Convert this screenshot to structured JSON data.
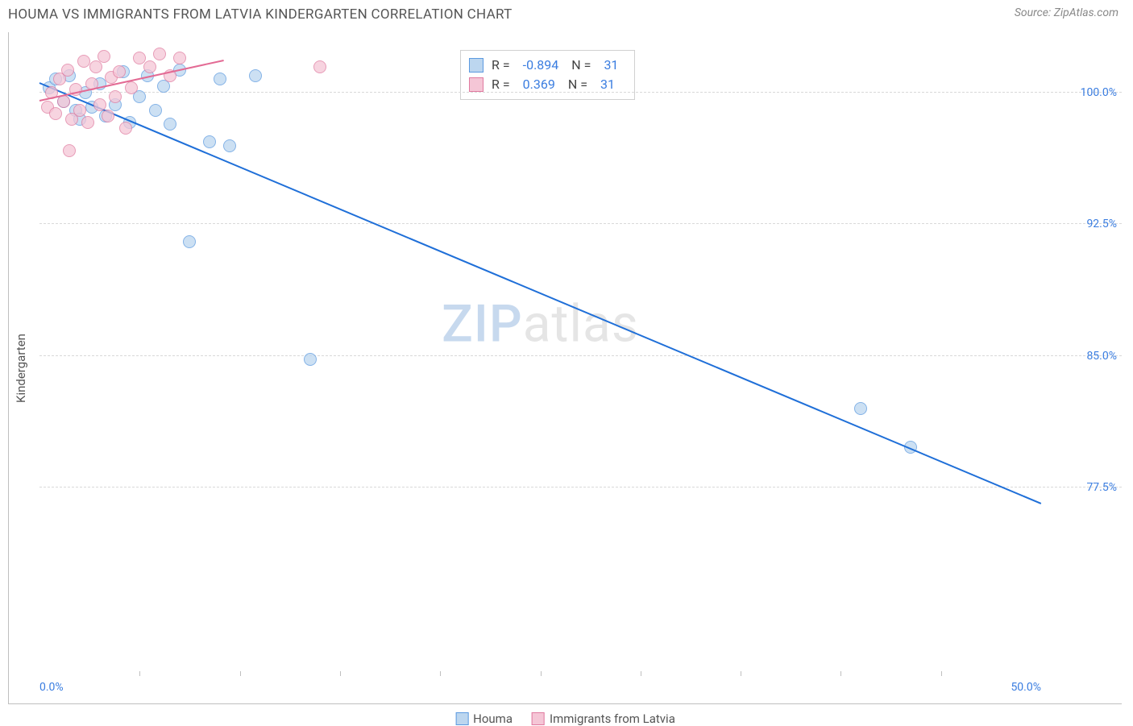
{
  "title": "HOUMA VS IMMIGRANTS FROM LATVIA KINDERGARTEN CORRELATION CHART",
  "source_label": "Source: ZipAtlas.com",
  "ylabel": "Kindergarten",
  "watermark": {
    "zip": "ZIP",
    "atlas": "atlas"
  },
  "chart": {
    "type": "scatter",
    "xlim": [
      0,
      50
    ],
    "ylim": [
      67,
      103
    ],
    "background_color": "#ffffff",
    "grid_color": "#d9d9d9",
    "border_color": "#bfbfbf",
    "xticks_minor": [
      5,
      10,
      15,
      20,
      25,
      30,
      35,
      40,
      45
    ],
    "xticks_labeled": [
      {
        "x": 0,
        "label": "0.0%"
      },
      {
        "x": 50,
        "label": "50.0%"
      }
    ],
    "yticks": [
      {
        "y": 77.5,
        "label": "77.5%"
      },
      {
        "y": 85.0,
        "label": "85.0%"
      },
      {
        "y": 92.5,
        "label": "92.5%"
      },
      {
        "y": 100.0,
        "label": "100.0%"
      }
    ],
    "series": [
      {
        "name": "Houma",
        "fill": "#bcd6ef",
        "stroke": "#5c9ae0",
        "line_color": "#1f6fd8",
        "marker_radius": 8,
        "R": "-0.894",
        "N": "31",
        "trend": {
          "x1": 0,
          "y1": 100.5,
          "x2": 50,
          "y2": 76.5
        },
        "points": [
          {
            "x": 0.5,
            "y": 100.3
          },
          {
            "x": 0.8,
            "y": 100.8
          },
          {
            "x": 1.2,
            "y": 99.5
          },
          {
            "x": 1.5,
            "y": 101.0
          },
          {
            "x": 1.8,
            "y": 99.0
          },
          {
            "x": 2.0,
            "y": 98.5
          },
          {
            "x": 2.3,
            "y": 100.0
          },
          {
            "x": 2.6,
            "y": 99.2
          },
          {
            "x": 3.0,
            "y": 100.5
          },
          {
            "x": 3.3,
            "y": 98.7
          },
          {
            "x": 3.8,
            "y": 99.3
          },
          {
            "x": 4.2,
            "y": 101.2
          },
          {
            "x": 4.5,
            "y": 98.3
          },
          {
            "x": 5.0,
            "y": 99.8
          },
          {
            "x": 5.4,
            "y": 101.0
          },
          {
            "x": 5.8,
            "y": 99.0
          },
          {
            "x": 6.2,
            "y": 100.4
          },
          {
            "x": 6.5,
            "y": 98.2
          },
          {
            "x": 7.0,
            "y": 101.3
          },
          {
            "x": 8.5,
            "y": 97.2
          },
          {
            "x": 9.0,
            "y": 100.8
          },
          {
            "x": 9.5,
            "y": 97.0
          },
          {
            "x": 10.8,
            "y": 101.0
          },
          {
            "x": 7.5,
            "y": 91.5
          },
          {
            "x": 13.5,
            "y": 84.8
          },
          {
            "x": 41.0,
            "y": 82.0
          },
          {
            "x": 43.5,
            "y": 79.8
          }
        ]
      },
      {
        "name": "Immigrants from Latvia",
        "fill": "#f5c6d6",
        "stroke": "#e07ba0",
        "line_color": "#e36a94",
        "marker_radius": 8,
        "R": "0.369",
        "N": "31",
        "trend": {
          "x1": 0,
          "y1": 99.5,
          "x2": 9.2,
          "y2": 101.8
        },
        "points": [
          {
            "x": 0.4,
            "y": 99.2
          },
          {
            "x": 0.6,
            "y": 100.0
          },
          {
            "x": 0.8,
            "y": 98.8
          },
          {
            "x": 1.0,
            "y": 100.8
          },
          {
            "x": 1.2,
            "y": 99.5
          },
          {
            "x": 1.4,
            "y": 101.3
          },
          {
            "x": 1.6,
            "y": 98.5
          },
          {
            "x": 1.8,
            "y": 100.2
          },
          {
            "x": 2.0,
            "y": 99.0
          },
          {
            "x": 2.2,
            "y": 101.8
          },
          {
            "x": 2.4,
            "y": 98.3
          },
          {
            "x": 2.6,
            "y": 100.5
          },
          {
            "x": 2.8,
            "y": 101.5
          },
          {
            "x": 3.0,
            "y": 99.3
          },
          {
            "x": 3.2,
            "y": 102.1
          },
          {
            "x": 3.4,
            "y": 98.7
          },
          {
            "x": 3.6,
            "y": 100.9
          },
          {
            "x": 3.8,
            "y": 99.8
          },
          {
            "x": 4.0,
            "y": 101.2
          },
          {
            "x": 4.3,
            "y": 98.0
          },
          {
            "x": 4.6,
            "y": 100.3
          },
          {
            "x": 5.0,
            "y": 102.0
          },
          {
            "x": 5.5,
            "y": 101.5
          },
          {
            "x": 6.0,
            "y": 102.2
          },
          {
            "x": 6.5,
            "y": 101.0
          },
          {
            "x": 7.0,
            "y": 102.0
          },
          {
            "x": 1.5,
            "y": 96.7
          },
          {
            "x": 14.0,
            "y": 101.5
          }
        ]
      }
    ]
  },
  "legend": {
    "series1_label": "Houma",
    "series2_label": "Immigrants from Latvia"
  },
  "stats_box": {
    "r_label": "R =",
    "n_label": "N ="
  }
}
